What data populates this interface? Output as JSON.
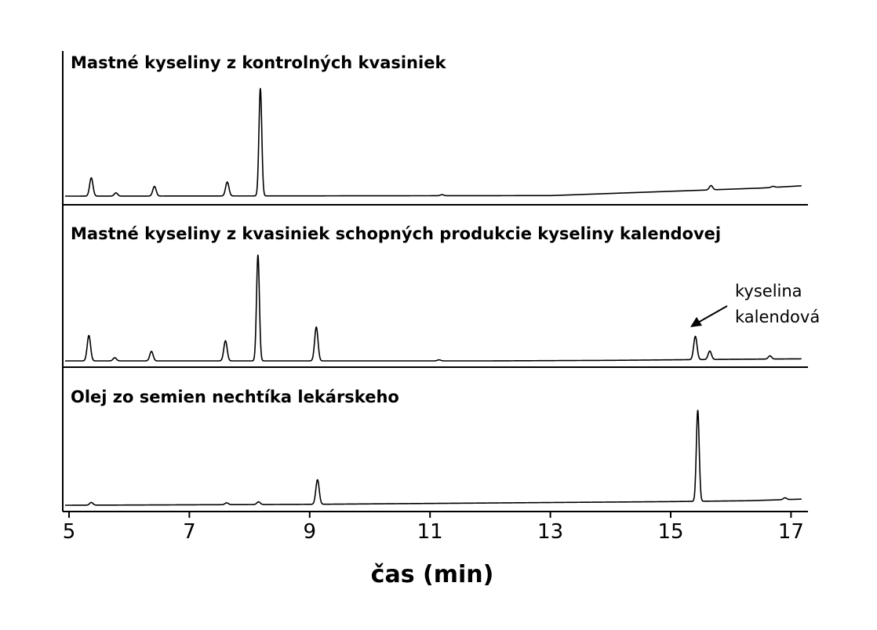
{
  "chart_data": {
    "type": "line",
    "xlabel": "čas (min)",
    "ylabel": "",
    "xlim": [
      4.9,
      17.3
    ],
    "x_ticks": [
      5,
      7,
      9,
      11,
      13,
      15,
      17
    ],
    "grid": false,
    "panels": [
      {
        "title": "Mastné kyseliny z kontrolných kvasiniek",
        "baseline": [
          [
            5.0,
            0.0
          ],
          [
            13.0,
            0.005
          ],
          [
            15.0,
            0.045
          ],
          [
            16.5,
            0.075
          ],
          [
            17.3,
            0.1
          ]
        ],
        "peaks": [
          {
            "x": 5.37,
            "height": 0.17
          },
          {
            "x": 5.78,
            "height": 0.03
          },
          {
            "x": 6.42,
            "height": 0.09
          },
          {
            "x": 7.63,
            "height": 0.13
          },
          {
            "x": 8.18,
            "height": 1.0
          },
          {
            "x": 11.2,
            "height": 0.01
          },
          {
            "x": 15.67,
            "height": 0.04
          },
          {
            "x": 16.7,
            "height": 0.01
          }
        ]
      },
      {
        "title": "Mastné kyseliny z kvasiniek schopných produkcie kyseliny kalendovej",
        "baseline": [
          [
            5.0,
            0.0
          ],
          [
            12.0,
            0.0
          ],
          [
            14.0,
            0.005
          ],
          [
            16.0,
            0.015
          ],
          [
            17.3,
            0.02
          ]
        ],
        "peaks": [
          {
            "x": 5.33,
            "height": 0.24
          },
          {
            "x": 5.76,
            "height": 0.03
          },
          {
            "x": 6.37,
            "height": 0.09
          },
          {
            "x": 7.6,
            "height": 0.19
          },
          {
            "x": 8.14,
            "height": 1.0
          },
          {
            "x": 9.11,
            "height": 0.32
          },
          {
            "x": 11.15,
            "height": 0.01
          },
          {
            "x": 15.41,
            "height": 0.22
          },
          {
            "x": 15.65,
            "height": 0.08
          },
          {
            "x": 16.65,
            "height": 0.03
          }
        ]
      },
      {
        "title": "Olej zo semien nechtíka lekárskeho",
        "baseline": [
          [
            5.0,
            0.0
          ],
          [
            9.0,
            0.01
          ],
          [
            13.0,
            0.03
          ],
          [
            15.0,
            0.04
          ],
          [
            16.3,
            0.05
          ],
          [
            17.3,
            0.07
          ]
        ],
        "peaks": [
          {
            "x": 5.37,
            "height": 0.03
          },
          {
            "x": 7.62,
            "height": 0.02
          },
          {
            "x": 8.15,
            "height": 0.03
          },
          {
            "x": 9.13,
            "height": 0.27
          },
          {
            "x": 15.45,
            "height": 1.0
          },
          {
            "x": 16.9,
            "height": 0.02
          }
        ]
      }
    ],
    "annotations": [
      {
        "panel": 1,
        "text": [
          "kyselina",
          "kalendová"
        ],
        "points_to_x": 15.41
      }
    ]
  }
}
